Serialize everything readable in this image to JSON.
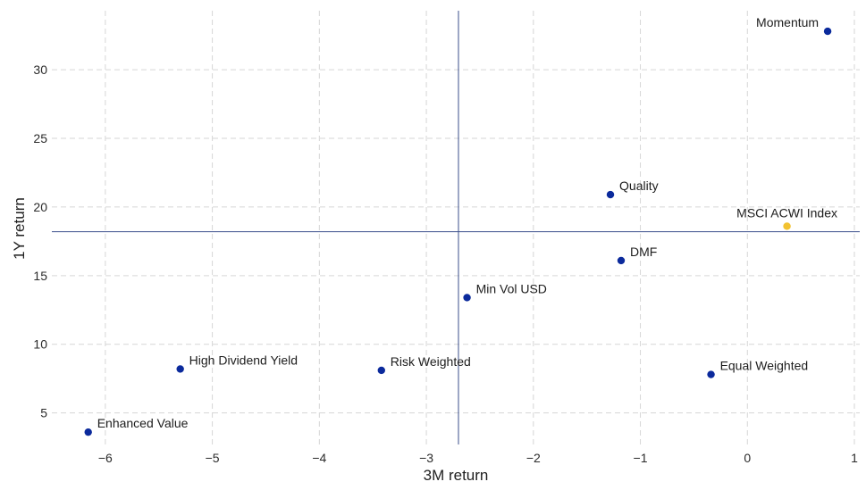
{
  "chart_data": {
    "type": "scatter",
    "title": "",
    "xlabel": "3M return",
    "ylabel": "1Y return",
    "xlim": [
      -6.5,
      1.05
    ],
    "ylim": [
      2.7,
      34.3
    ],
    "x_ticks": [
      -6,
      -5,
      -4,
      -3,
      -2,
      -1,
      0,
      1
    ],
    "x_tick_labels": [
      "−6",
      "−5",
      "−4",
      "−3",
      "−2",
      "−1",
      "0",
      "1"
    ],
    "y_ticks": [
      5,
      10,
      15,
      20,
      25,
      30
    ],
    "y_tick_labels": [
      "5",
      "10",
      "15",
      "20",
      "25",
      "30"
    ],
    "grid": true,
    "reference_lines": {
      "x": -2.7,
      "y": 18.2
    },
    "colors": {
      "series": "#0b2a9c",
      "highlight": "#f2c230",
      "reference": "#3b4f8c",
      "grid": "#d6d6d6"
    },
    "points": [
      {
        "label": "Momentum",
        "x": 0.75,
        "y": 32.8,
        "highlight": false,
        "label_pos": "left"
      },
      {
        "label": "Quality",
        "x": -1.28,
        "y": 20.9,
        "highlight": false,
        "label_pos": "right"
      },
      {
        "label": "MSCI ACWI Index",
        "x": 0.37,
        "y": 18.6,
        "highlight": true,
        "label_pos": "above"
      },
      {
        "label": "DMF",
        "x": -1.18,
        "y": 16.1,
        "highlight": false,
        "label_pos": "right"
      },
      {
        "label": "Min Vol USD",
        "x": -2.62,
        "y": 13.4,
        "highlight": false,
        "label_pos": "right"
      },
      {
        "label": "High Dividend Yield",
        "x": -5.3,
        "y": 8.2,
        "highlight": false,
        "label_pos": "right"
      },
      {
        "label": "Risk Weighted",
        "x": -3.42,
        "y": 8.1,
        "highlight": false,
        "label_pos": "right"
      },
      {
        "label": "Equal Weighted",
        "x": -0.34,
        "y": 7.8,
        "highlight": false,
        "label_pos": "right"
      },
      {
        "label": "Enhanced Value",
        "x": -6.16,
        "y": 3.6,
        "highlight": false,
        "label_pos": "right"
      }
    ]
  }
}
